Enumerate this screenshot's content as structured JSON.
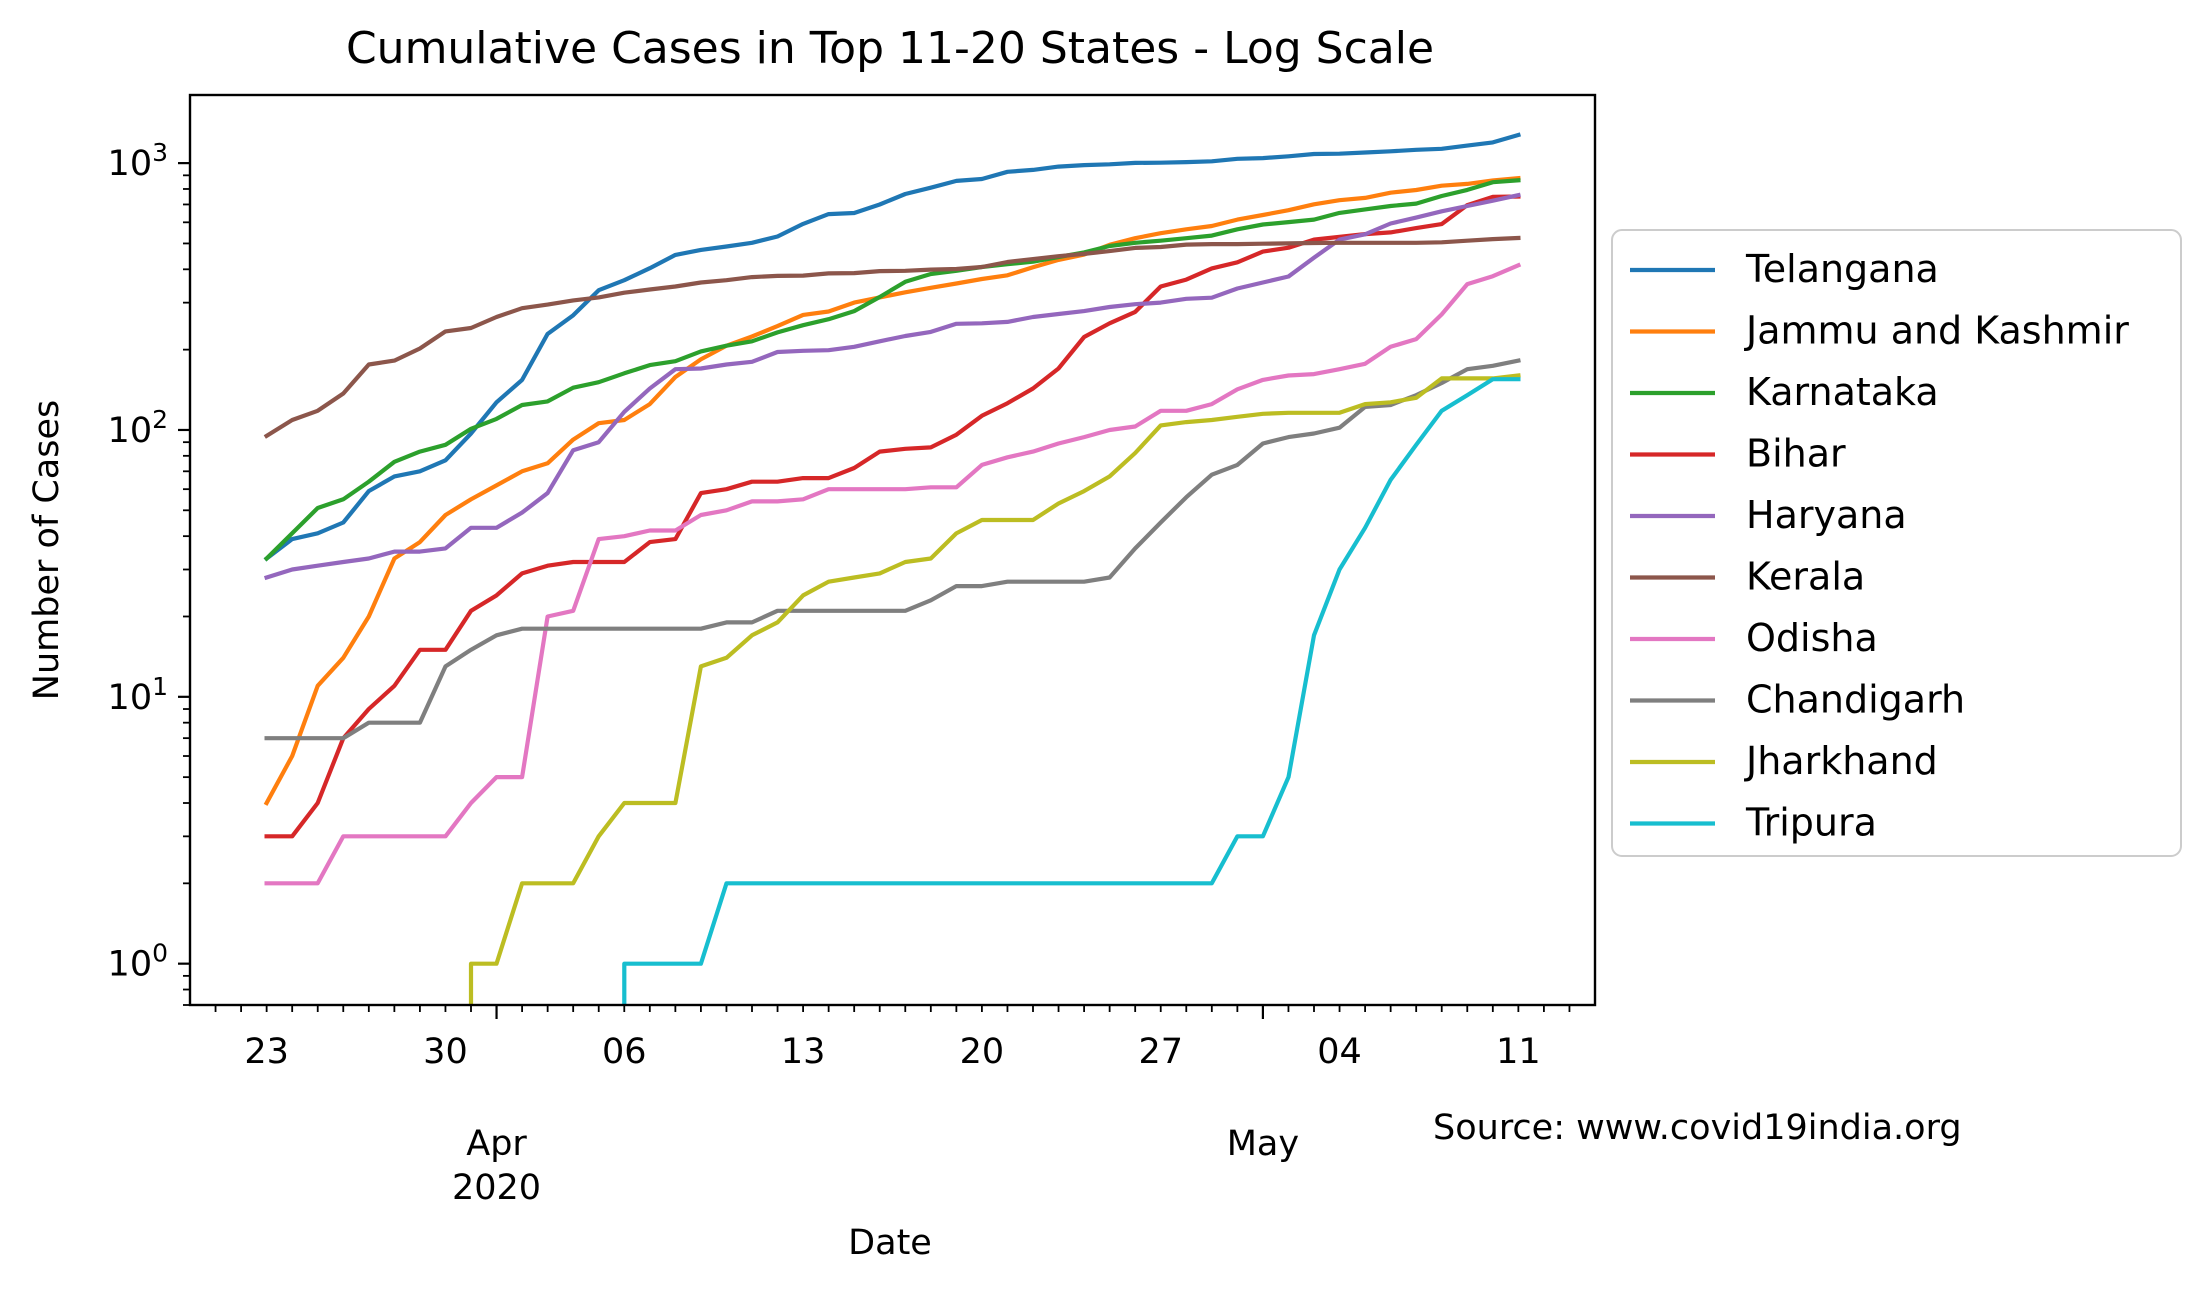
{
  "chart_data": {
    "type": "line",
    "title": "Cumulative Cases in Top 11-20 States - Log Scale",
    "xlabel": "Date",
    "ylabel": "Number of Cases",
    "yscale": "log",
    "xlim": [
      "2020-03-20",
      "2020-05-14"
    ],
    "ylim": [
      0.7,
      1800
    ],
    "y_ticks": [
      {
        "value": 1,
        "base": "10",
        "exp": "0"
      },
      {
        "value": 10,
        "base": "10",
        "exp": "1"
      },
      {
        "value": 100,
        "base": "10",
        "exp": "2"
      },
      {
        "value": 1000,
        "base": "10",
        "exp": "3"
      }
    ],
    "x_ticks": [
      {
        "date": "2020-03-23",
        "label": "23"
      },
      {
        "date": "2020-03-30",
        "label": "30"
      },
      {
        "date": "2020-04-06",
        "label": "06"
      },
      {
        "date": "2020-04-13",
        "label": "13"
      },
      {
        "date": "2020-04-20",
        "label": "20"
      },
      {
        "date": "2020-04-27",
        "label": "27"
      },
      {
        "date": "2020-05-04",
        "label": "04"
      },
      {
        "date": "2020-05-11",
        "label": "11"
      }
    ],
    "month_labels": [
      {
        "date": "2020-04-01",
        "lines": [
          "Apr",
          "2020"
        ]
      },
      {
        "date": "2020-05-01",
        "lines": [
          "May"
        ]
      }
    ],
    "grid": false,
    "legend_position": "right",
    "x_start": "2020-03-23",
    "series": [
      {
        "name": "Telangana",
        "color": "#1f77b4",
        "values": [
          33,
          39,
          41,
          45,
          59,
          67,
          70,
          77,
          97,
          127,
          154,
          229,
          269,
          334,
          364,
          404,
          453,
          473,
          487,
          503,
          531,
          592,
          644,
          650,
          700,
          766,
          809,
          858,
          872,
          928,
          943,
          970,
          983,
          990,
          1002,
          1004,
          1009,
          1016,
          1038,
          1044,
          1061,
          1082,
          1085,
          1096,
          1107,
          1122,
          1132,
          1163,
          1196,
          1275
        ]
      },
      {
        "name": "Jammu and Kashmir",
        "color": "#ff7f0e",
        "values": [
          4,
          6,
          11,
          14,
          20,
          33,
          38,
          48,
          55,
          62,
          70,
          75,
          92,
          106,
          109,
          125,
          158,
          184,
          207,
          224,
          245,
          270,
          278,
          300,
          314,
          328,
          341,
          354,
          368,
          380,
          407,
          434,
          454,
          494,
          523,
          546,
          565,
          581,
          614,
          639,
          666,
          701,
          726,
          741,
          775,
          793,
          823,
          836,
          861,
          879
        ]
      },
      {
        "name": "Karnataka",
        "color": "#2ca02c",
        "values": [
          33,
          41,
          51,
          55,
          64,
          76,
          83,
          88,
          101,
          110,
          124,
          128,
          144,
          151,
          163,
          175,
          181,
          197,
          207,
          215,
          232,
          247,
          260,
          279,
          315,
          359,
          384,
          395,
          408,
          418,
          427,
          445,
          463,
          489,
          503,
          512,
          523,
          535,
          565,
          589,
          601,
          614,
          651,
          671,
          691,
          705,
          753,
          794,
          848,
          862
        ]
      },
      {
        "name": "Bihar",
        "color": "#d62728",
        "values": [
          3,
          3,
          4,
          7,
          9,
          11,
          15,
          15,
          21,
          24,
          29,
          31,
          32,
          32,
          32,
          38,
          39,
          58,
          60,
          64,
          64,
          66,
          66,
          72,
          83,
          85,
          86,
          96,
          113,
          126,
          143,
          170,
          223,
          251,
          277,
          345,
          366,
          403,
          425,
          466,
          482,
          517,
          529,
          542,
          550,
          571,
          591,
          696,
          747,
          750
        ]
      },
      {
        "name": "Haryana",
        "color": "#9467bd",
        "values": [
          28,
          30,
          31,
          32,
          33,
          35,
          35,
          36,
          43,
          43,
          49,
          58,
          84,
          90,
          117,
          143,
          169,
          170,
          176,
          180,
          196,
          198,
          199,
          205,
          215,
          225,
          233,
          250,
          251,
          254,
          265,
          272,
          279,
          289,
          296,
          300,
          310,
          313,
          339,
          357,
          376,
          442,
          517,
          541,
          594,
          625,
          660,
          691,
          723,
          759
        ]
      },
      {
        "name": "Kerala",
        "color": "#8c564b",
        "values": [
          95,
          109,
          118,
          137,
          176,
          182,
          202,
          234,
          241,
          265,
          286,
          295,
          306,
          314,
          327,
          336,
          345,
          357,
          364,
          374,
          378,
          379,
          386,
          387,
          394,
          395,
          399,
          401,
          408,
          426,
          437,
          448,
          457,
          468,
          481,
          485,
          495,
          497,
          497,
          499,
          500,
          502,
          503,
          503,
          503,
          503,
          505,
          512,
          519,
          524
        ]
      },
      {
        "name": "Odisha",
        "color": "#e377c2",
        "values": [
          2,
          2,
          2,
          3,
          3,
          3,
          3,
          3,
          4,
          5,
          5,
          20,
          21,
          39,
          40,
          42,
          42,
          48,
          50,
          54,
          54,
          55,
          60,
          60,
          60,
          60,
          61,
          61,
          74,
          79,
          83,
          89,
          94,
          100,
          103,
          118,
          118,
          125,
          142,
          154,
          160,
          162,
          169,
          177,
          205,
          219,
          271,
          352,
          377,
          414
        ]
      },
      {
        "name": "Chandigarh",
        "color": "#7f7f7f",
        "values": [
          7,
          7,
          7,
          7,
          8,
          8,
          8,
          13,
          15,
          17,
          18,
          18,
          18,
          18,
          18,
          18,
          18,
          18,
          19,
          19,
          21,
          21,
          21,
          21,
          21,
          21,
          23,
          26,
          26,
          27,
          27,
          27,
          27,
          28,
          36,
          45,
          56,
          68,
          74,
          89,
          94,
          97,
          102,
          122,
          124,
          135,
          150,
          169,
          174,
          182
        ]
      },
      {
        "name": "Jharkhand",
        "color": "#bcbd22",
        "values": [
          null,
          null,
          null,
          null,
          null,
          null,
          null,
          null,
          1,
          1,
          2,
          2,
          2,
          3,
          4,
          4,
          4,
          13,
          14,
          17,
          19,
          24,
          27,
          28,
          29,
          32,
          33,
          41,
          46,
          46,
          46,
          53,
          59,
          67,
          82,
          104,
          107,
          109,
          112,
          115,
          116,
          116,
          116,
          125,
          127,
          132,
          156,
          156,
          156,
          160
        ]
      },
      {
        "name": "Tripura",
        "color": "#17becf",
        "values": [
          null,
          null,
          null,
          null,
          null,
          null,
          null,
          null,
          null,
          null,
          null,
          null,
          null,
          null,
          1,
          1,
          1,
          1,
          2,
          2,
          2,
          2,
          2,
          2,
          2,
          2,
          2,
          2,
          2,
          2,
          2,
          2,
          2,
          2,
          2,
          2,
          2,
          2,
          3,
          3,
          5,
          17,
          30,
          43,
          65,
          88,
          118,
          135,
          155,
          155
        ]
      }
    ]
  },
  "annotation": {
    "source": "Source: www.covid19india.org"
  }
}
